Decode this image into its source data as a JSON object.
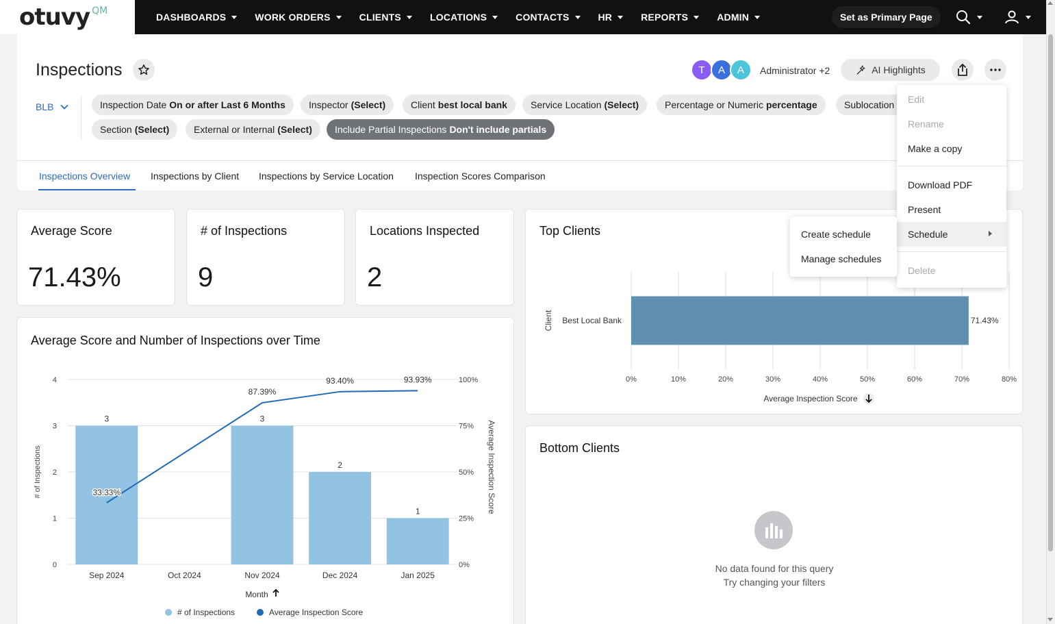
{
  "brand": {
    "logo": "otuvy",
    "logo_sup": "QM"
  },
  "nav": [
    {
      "label": "DASHBOARDS"
    },
    {
      "label": "WORK ORDERS"
    },
    {
      "label": "CLIENTS"
    },
    {
      "label": "LOCATIONS"
    },
    {
      "label": "CONTACTS"
    },
    {
      "label": "HR"
    },
    {
      "label": "REPORTS"
    },
    {
      "label": "ADMIN"
    }
  ],
  "topbar": {
    "primary_page": "Set as Primary Page"
  },
  "page": {
    "title": "Inspections"
  },
  "viewers": {
    "avatars": [
      {
        "initial": "T",
        "color": "#8a5cf6"
      },
      {
        "initial": "A",
        "color": "#3b6fe0"
      },
      {
        "initial": "A",
        "color": "#4cc4d9"
      }
    ],
    "label": "Administrator +2"
  },
  "ai_highlights": "AI Highlights",
  "filter_group": "BLB",
  "filters": [
    {
      "name": "Inspection Date",
      "value": "On or after Last 6 Months"
    },
    {
      "name": "Inspector",
      "value": "(Select)"
    },
    {
      "name": "Client",
      "value": "best local bank"
    },
    {
      "name": "Service Location",
      "value": "(Select)"
    },
    {
      "name": "Percentage or Numeric",
      "value": "percentage"
    },
    {
      "name": "Sublocation",
      "value": ""
    },
    {
      "name": "Section",
      "value": "(Select)"
    },
    {
      "name": "External or Internal",
      "value": "(Select)"
    },
    {
      "name": "Include Partial Inspections",
      "value": "Don't include partials"
    }
  ],
  "tabs": [
    {
      "label": "Inspections Overview"
    },
    {
      "label": "Inspections by Client"
    },
    {
      "label": "Inspections by Service Location"
    },
    {
      "label": "Inspection Scores Comparison"
    }
  ],
  "kpis": [
    {
      "title": "Average Score",
      "value": "71.43%"
    },
    {
      "title": "# of Inspections",
      "value": "9"
    },
    {
      "title": "Locations Inspected",
      "value": "2"
    }
  ],
  "menu": {
    "items": [
      "Edit",
      "Rename",
      "Make a copy",
      "Download PDF",
      "Present",
      "Schedule",
      "Delete"
    ],
    "submenu": [
      "Create schedule",
      "Manage schedules"
    ]
  },
  "empty_state": {
    "title": "Bottom Clients",
    "line1": "No data found for this query",
    "line2": "Try changing your filters"
  },
  "chart_data": [
    {
      "type": "bar",
      "title": "Average Score and Number of Inspections over Time",
      "categories": [
        "Sep 2024",
        "Oct 2024",
        "Nov 2024",
        "Dec 2024",
        "Jan 2025"
      ],
      "series": [
        {
          "name": "# of Inspections",
          "type": "bar",
          "axis": "left",
          "color": "#92c3e3",
          "values": [
            3,
            null,
            3,
            2,
            1
          ]
        },
        {
          "name": "Average Inspection Score",
          "type": "line",
          "axis": "right",
          "color": "#1f6bb8",
          "values": [
            33.33,
            null,
            87.39,
            93.4,
            93.93
          ]
        }
      ],
      "xlabel": "Month",
      "ylabel": "# of Inspections",
      "ylabel_right": "Average Inspection Score",
      "ylim": [
        0,
        4
      ],
      "yticks": [
        "0",
        "1",
        "2",
        "3",
        "4"
      ],
      "ylim_right": [
        0,
        100
      ],
      "yticks_right": [
        "0%",
        "25%",
        "50%",
        "75%",
        "100%"
      ],
      "legend": "bottom"
    },
    {
      "type": "bar",
      "orientation": "horizontal",
      "title": "Top Clients",
      "categories": [
        "Best Local Bank"
      ],
      "series": [
        {
          "name": "Average Inspection Score",
          "color": "#5f90b0",
          "values": [
            71.43
          ]
        }
      ],
      "value_labels": [
        "71.43%"
      ],
      "xlabel": "Average Inspection Score",
      "ylabel": "Client",
      "xlim": [
        0,
        80
      ],
      "xticks": [
        "0%",
        "10%",
        "20%",
        "30%",
        "40%",
        "50%",
        "60%",
        "70%",
        "80%"
      ]
    }
  ]
}
